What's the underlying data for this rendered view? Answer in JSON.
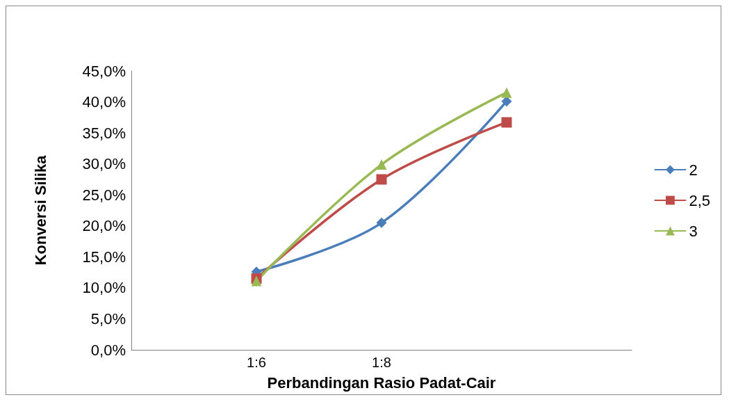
{
  "chart_data": {
    "type": "line",
    "xlabel": "Perbandingan Rasio Padat-Cair",
    "ylabel": "Konversi Silika",
    "categories": [
      null,
      "1:6",
      "1:8",
      null,
      null
    ],
    "series": [
      {
        "name": "2",
        "color": "#4a7ebb",
        "marker": "diamond",
        "values": [
          null,
          12.6,
          20.5,
          40.1,
          null
        ]
      },
      {
        "name": "2,5",
        "color": "#be4b48",
        "marker": "square",
        "values": [
          null,
          11.5,
          27.5,
          36.7,
          null
        ]
      },
      {
        "name": "3",
        "color": "#98b954",
        "marker": "triangle",
        "values": [
          null,
          11.1,
          29.9,
          41.5,
          null
        ]
      }
    ],
    "ylim": [
      0,
      45
    ],
    "yticks": [
      {
        "value": 0,
        "label": "0,0%"
      },
      {
        "value": 5,
        "label": "5,0%"
      },
      {
        "value": 10,
        "label": "10,0%"
      },
      {
        "value": 15,
        "label": "15,0%"
      },
      {
        "value": 20,
        "label": "20,0%"
      },
      {
        "value": 25,
        "label": "25,0%"
      },
      {
        "value": 30,
        "label": "30,0%"
      },
      {
        "value": 35,
        "label": "35,0%"
      },
      {
        "value": 40,
        "label": "40,0%"
      },
      {
        "value": 45,
        "label": "45,0%"
      }
    ],
    "grid": false,
    "legend": "right"
  }
}
